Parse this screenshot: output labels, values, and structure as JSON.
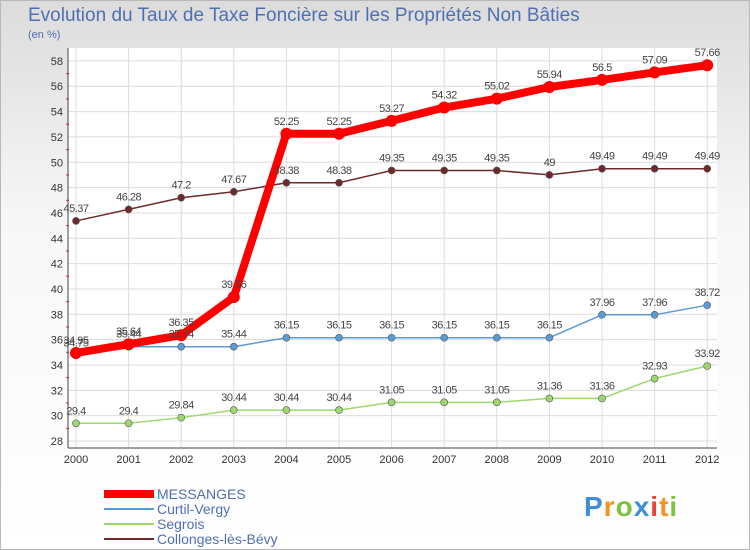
{
  "title": "Evolution du Taux de Taxe Foncière sur les Propriétés Non Bâties",
  "unit": "(en %)",
  "chart_data": {
    "type": "line",
    "title": "Evolution du Taux de Taxe Foncière sur les Propriétés Non Bâties",
    "ylabel": "(en %)",
    "xlabel": "",
    "categories": [
      "2000",
      "2001",
      "2002",
      "2003",
      "2004",
      "2005",
      "2006",
      "2007",
      "2008",
      "2009",
      "2010",
      "2011",
      "2012"
    ],
    "ylim": [
      28,
      58
    ],
    "yticks": [
      "28",
      "30",
      "32",
      "34",
      "36",
      "38",
      "40",
      "42",
      "44",
      "46",
      "48",
      "50",
      "52",
      "54",
      "56",
      "58"
    ],
    "grid": true,
    "legend_position": "bottom-left",
    "series": [
      {
        "name": "MESSANGES",
        "color": "#ff0000",
        "values": [
          34.95,
          35.64,
          36.35,
          39.36,
          52.25,
          52.25,
          53.27,
          54.32,
          55.02,
          55.94,
          56.5,
          57.09,
          57.66
        ],
        "labels": [
          "34.95",
          "35.64",
          "36.35",
          "39.36",
          "52.25",
          "52.25",
          "53.27",
          "54.32",
          "55.02",
          "55.94",
          "56.5",
          "57.09",
          "57.66"
        ]
      },
      {
        "name": "Curtil-Vergy",
        "color": "#5b9bd5",
        "values": [
          34.75,
          35.44,
          35.44,
          35.44,
          36.15,
          36.15,
          36.15,
          36.15,
          36.15,
          36.15,
          37.96,
          37.96,
          38.72
        ],
        "labels": [
          "34.75",
          "35.44",
          "35.44",
          "35.44",
          "36.15",
          "36.15",
          "36.15",
          "36.15",
          "36.15",
          "36.15",
          "37.96",
          "37.96",
          "38.72"
        ]
      },
      {
        "name": "Segrois",
        "color": "#9dd86f",
        "values": [
          29.4,
          29.4,
          29.84,
          30.44,
          30.44,
          30.44,
          31.05,
          31.05,
          31.05,
          31.36,
          31.36,
          32.93,
          33.92
        ],
        "labels": [
          "29.4",
          "29.4",
          "29.84",
          "30.44",
          "30.44",
          "30.44",
          "31.05",
          "31.05",
          "31.05",
          "31.36",
          "31.36",
          "32.93",
          "33.92"
        ]
      },
      {
        "name": "Collonges-lès-Bévy",
        "color": "#6e2a2a",
        "values": [
          45.37,
          46.28,
          47.2,
          47.67,
          48.38,
          48.38,
          49.35,
          49.35,
          49.35,
          49.0,
          49.49,
          49.49,
          49.49
        ],
        "labels": [
          "45.37",
          "46.28",
          "47.2",
          "47.67",
          "48.38",
          "48.38",
          "49.35",
          "49.35",
          "49.35",
          "49",
          "49.49",
          "49.49",
          "49.49"
        ]
      }
    ]
  },
  "logo": {
    "letters": [
      "P",
      "r",
      "o",
      "x",
      "i",
      "t",
      "i"
    ],
    "colors": [
      "#3d8fd6",
      "#f2941f",
      "#7fc242",
      "#3d8fd6",
      "#e8423b",
      "#f2941f",
      "#7fc242"
    ]
  }
}
